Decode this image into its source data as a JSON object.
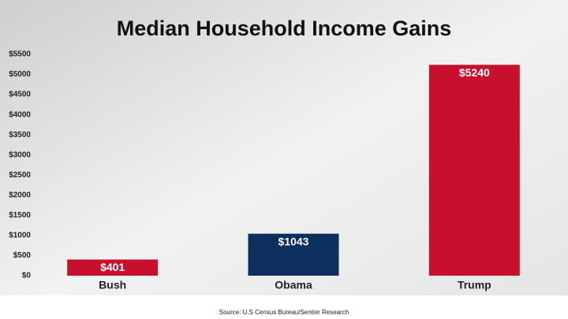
{
  "chart_data": {
    "type": "bar",
    "title": "Median Household Income Gains",
    "categories": [
      "Bush",
      "Obama",
      "Trump"
    ],
    "values": [
      401,
      1043,
      5240
    ],
    "value_labels": [
      "$401",
      "$1043",
      "$5240"
    ],
    "colors": [
      "#c8102e",
      "#0c2f5f",
      "#c8102e"
    ],
    "ylim": [
      0,
      5500
    ],
    "yticks": [
      {
        "value": 0,
        "label": "$0"
      },
      {
        "value": 500,
        "label": "$500"
      },
      {
        "value": 1000,
        "label": "$1000"
      },
      {
        "value": 1500,
        "label": "$1500"
      },
      {
        "value": 2000,
        "label": "$2000"
      },
      {
        "value": 2500,
        "label": "$2500"
      },
      {
        "value": 3000,
        "label": "$3000"
      },
      {
        "value": 3500,
        "label": "$3500"
      },
      {
        "value": 4000,
        "label": "$4000"
      },
      {
        "value": 4500,
        "label": "$4500"
      },
      {
        "value": 5000,
        "label": "$5000"
      },
      {
        "value": 5500,
        "label": "$5500"
      }
    ],
    "grid": false,
    "source": "Source:  U.S Census Bureau/Sentier Research"
  }
}
